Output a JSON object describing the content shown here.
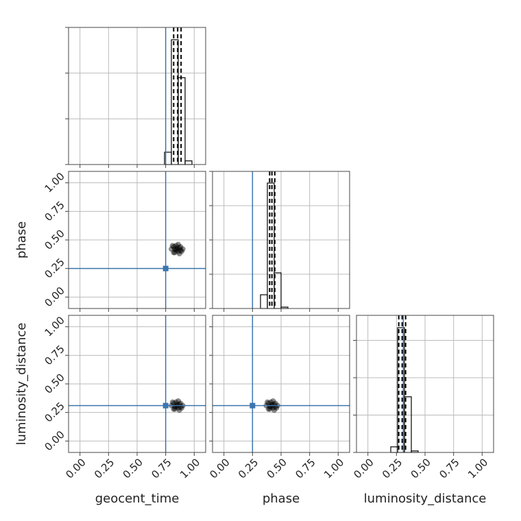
{
  "chart_data": {
    "type": "corner",
    "parameters": [
      "geocent_time",
      "phase",
      "luminosity_distance"
    ],
    "truths": [
      0.75,
      0.25,
      0.31
    ],
    "truth_color": "#3b75af",
    "color": "#000000",
    "grid": true,
    "lim": [
      -0.1,
      1.1
    ],
    "ticks": [
      {
        "value": 0,
        "label": "0.00"
      },
      {
        "value": 0.25,
        "label": "0.25"
      },
      {
        "value": 0.5,
        "label": "0.50"
      },
      {
        "value": 0.75,
        "label": "0.75"
      },
      {
        "value": 1,
        "label": "1.00"
      }
    ],
    "histograms": [
      {
        "bins": [
          0.74,
          0.8,
          0.86,
          0.92,
          0.98
        ],
        "counts": [
          0.27,
          2.73,
          1.9,
          0.08
        ],
        "ylim": [
          0,
          3
        ],
        "yticks": [
          0,
          1,
          2,
          3
        ],
        "quantiles": [
          0.82,
          0.855,
          0.885
        ]
      },
      {
        "bins": [
          0.32,
          0.38,
          0.44,
          0.5,
          0.56
        ],
        "counts": [
          0.4,
          3.66,
          1.04,
          0.04
        ],
        "ylim": [
          0,
          4
        ],
        "yticks": [
          0,
          1,
          2,
          3,
          4
        ],
        "quantiles": [
          0.4,
          0.42,
          0.445
        ]
      },
      {
        "bins": [
          0.2,
          0.26,
          0.32,
          0.38,
          0.44
        ],
        "counts": [
          0.15,
          3.34,
          1.49,
          0.04
        ],
        "ylim": [
          0,
          3.67
        ],
        "yticks": [
          0,
          1,
          2,
          3
        ],
        "quantiles": [
          0.27,
          0.3,
          0.33
        ]
      }
    ],
    "scatters": [
      {
        "x": [
          0.8,
          0.82,
          0.84,
          0.86,
          0.88,
          0.9,
          0.83,
          0.85,
          0.87,
          0.81,
          0.89,
          0.84,
          0.86,
          0.85,
          0.83,
          0.87,
          0.82,
          0.88
        ],
        "y": [
          0.42,
          0.39,
          0.45,
          0.4,
          0.44,
          0.42,
          0.42,
          0.43,
          0.38,
          0.45,
          0.4,
          0.41,
          0.46,
          0.42,
          0.39,
          0.43,
          0.44,
          0.41
        ]
      },
      {
        "x": [
          0.8,
          0.82,
          0.84,
          0.86,
          0.88,
          0.9,
          0.83,
          0.85,
          0.87,
          0.81,
          0.89,
          0.84,
          0.86,
          0.85,
          0.83,
          0.87,
          0.82,
          0.88
        ],
        "y": [
          0.31,
          0.28,
          0.34,
          0.29,
          0.33,
          0.31,
          0.3,
          0.32,
          0.27,
          0.34,
          0.29,
          0.3,
          0.35,
          0.31,
          0.28,
          0.32,
          0.33,
          0.3
        ]
      },
      {
        "x": [
          0.37,
          0.39,
          0.41,
          0.43,
          0.45,
          0.47,
          0.4,
          0.42,
          0.44,
          0.38,
          0.46,
          0.41,
          0.43,
          0.42,
          0.4,
          0.44,
          0.39,
          0.45
        ],
        "y": [
          0.31,
          0.28,
          0.34,
          0.29,
          0.33,
          0.31,
          0.3,
          0.32,
          0.27,
          0.34,
          0.29,
          0.3,
          0.35,
          0.31,
          0.28,
          0.32,
          0.33,
          0.3
        ]
      }
    ]
  }
}
